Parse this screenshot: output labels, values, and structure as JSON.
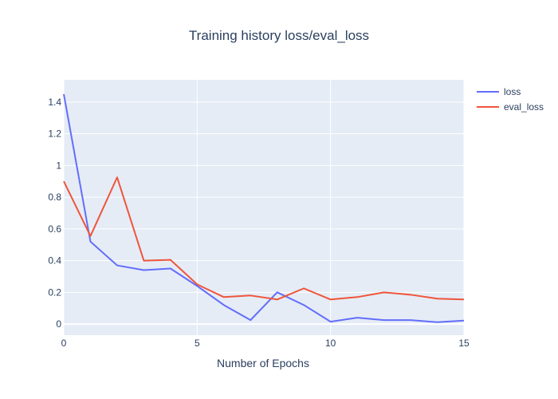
{
  "chart_data": {
    "type": "line",
    "title": "Training history loss/eval_loss",
    "xlabel": "Number of Epochs",
    "ylabel": "",
    "xlim": [
      0,
      15
    ],
    "ylim": [
      -0.07,
      1.54
    ],
    "xticks": [
      0,
      5,
      10,
      15
    ],
    "yticks": [
      0,
      0.2,
      0.4,
      0.6,
      0.8,
      1,
      1.2,
      1.4
    ],
    "ytick_labels": [
      "0",
      "0.2",
      "0.4",
      "0.6",
      "0.8",
      "1",
      "1.2",
      "1.4"
    ],
    "grid": true,
    "legend": "top-right",
    "x": [
      0,
      1,
      2,
      3,
      4,
      5,
      6,
      7,
      8,
      9,
      10,
      11,
      12,
      13,
      14,
      15
    ],
    "series": [
      {
        "name": "loss",
        "color": "#636efa",
        "values": [
          1.45,
          0.52,
          0.37,
          0.34,
          0.35,
          0.24,
          0.12,
          0.025,
          0.2,
          0.12,
          0.015,
          0.04,
          0.025,
          0.025,
          0.012,
          0.022
        ]
      },
      {
        "name": "eval_loss",
        "color": "#ef553b",
        "values": [
          0.9,
          0.555,
          0.925,
          0.4,
          0.405,
          0.25,
          0.17,
          0.18,
          0.155,
          0.225,
          0.155,
          0.17,
          0.2,
          0.185,
          0.16,
          0.155
        ]
      }
    ]
  }
}
